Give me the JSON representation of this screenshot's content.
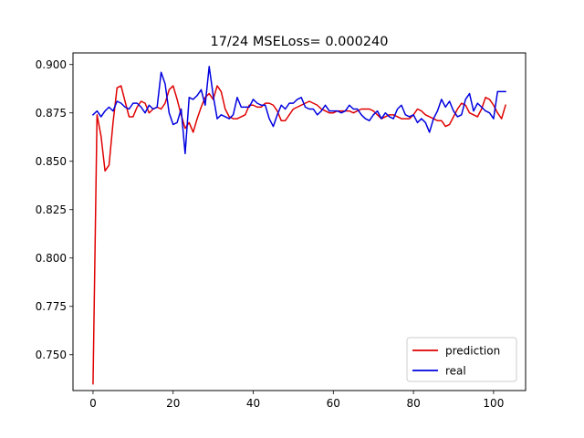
{
  "chart_data": {
    "type": "line",
    "title": "17/24 MSELoss= 0.000240",
    "xlabel": "",
    "ylabel": "",
    "xlim": [
      -5,
      108
    ],
    "ylim": [
      0.7315,
      0.906
    ],
    "xticks": [
      0,
      20,
      40,
      60,
      80,
      100
    ],
    "xtick_labels": [
      "0",
      "20",
      "40",
      "60",
      "80",
      "100"
    ],
    "yticks": [
      0.75,
      0.775,
      0.8,
      0.825,
      0.85,
      0.875,
      0.9
    ],
    "ytick_labels": [
      "0.750",
      "0.775",
      "0.800",
      "0.825",
      "0.850",
      "0.875",
      "0.900"
    ],
    "grid": false,
    "legend_position": "lower-right",
    "series": [
      {
        "name": "prediction",
        "color": "#e00000",
        "x": [
          0,
          1,
          2,
          3,
          4,
          5,
          6,
          7,
          8,
          9,
          10,
          11,
          12,
          13,
          14,
          15,
          16,
          17,
          18,
          19,
          20,
          21,
          22,
          23,
          24,
          25,
          26,
          27,
          28,
          29,
          30,
          31,
          32,
          33,
          34,
          35,
          36,
          37,
          38,
          39,
          40,
          41,
          42,
          43,
          44,
          45,
          46,
          47,
          48,
          49,
          50,
          51,
          52,
          53,
          54,
          55,
          56,
          57,
          58,
          59,
          60,
          61,
          62,
          63,
          64,
          65,
          66,
          67,
          68,
          69,
          70,
          71,
          72,
          73,
          74,
          75,
          76,
          77,
          78,
          79,
          80,
          81,
          82,
          83,
          84,
          85,
          86,
          87,
          88,
          89,
          90,
          91,
          92,
          93,
          94,
          95,
          96,
          97,
          98,
          99,
          100,
          101,
          102,
          103
        ],
        "values": [
          0.735,
          0.874,
          0.863,
          0.845,
          0.848,
          0.87,
          0.888,
          0.889,
          0.881,
          0.873,
          0.873,
          0.878,
          0.881,
          0.88,
          0.875,
          0.877,
          0.878,
          0.877,
          0.88,
          0.887,
          0.889,
          0.882,
          0.874,
          0.867,
          0.87,
          0.865,
          0.872,
          0.878,
          0.883,
          0.885,
          0.882,
          0.889,
          0.886,
          0.877,
          0.873,
          0.872,
          0.872,
          0.873,
          0.874,
          0.879,
          0.879,
          0.878,
          0.878,
          0.88,
          0.88,
          0.879,
          0.876,
          0.871,
          0.871,
          0.874,
          0.877,
          0.878,
          0.879,
          0.88,
          0.881,
          0.88,
          0.879,
          0.877,
          0.876,
          0.875,
          0.875,
          0.876,
          0.876,
          0.876,
          0.876,
          0.875,
          0.876,
          0.877,
          0.877,
          0.877,
          0.876,
          0.874,
          0.872,
          0.873,
          0.874,
          0.874,
          0.873,
          0.872,
          0.872,
          0.872,
          0.874,
          0.877,
          0.876,
          0.874,
          0.873,
          0.872,
          0.871,
          0.871,
          0.868,
          0.869,
          0.873,
          0.877,
          0.88,
          0.879,
          0.875,
          0.874,
          0.873,
          0.877,
          0.883,
          0.882,
          0.879,
          0.875,
          0.872,
          0.879
        ]
      },
      {
        "name": "real",
        "color": "#0000e0",
        "x": [
          0,
          1,
          2,
          3,
          4,
          5,
          6,
          7,
          8,
          9,
          10,
          11,
          12,
          13,
          14,
          15,
          16,
          17,
          18,
          19,
          20,
          21,
          22,
          23,
          24,
          25,
          26,
          27,
          28,
          29,
          30,
          31,
          32,
          33,
          34,
          35,
          36,
          37,
          38,
          39,
          40,
          41,
          42,
          43,
          44,
          45,
          46,
          47,
          48,
          49,
          50,
          51,
          52,
          53,
          54,
          55,
          56,
          57,
          58,
          59,
          60,
          61,
          62,
          63,
          64,
          65,
          66,
          67,
          68,
          69,
          70,
          71,
          72,
          73,
          74,
          75,
          76,
          77,
          78,
          79,
          80,
          81,
          82,
          83,
          84,
          85,
          86,
          87,
          88,
          89,
          90,
          91,
          92,
          93,
          94,
          95,
          96,
          97,
          98,
          99,
          100,
          101,
          102,
          103
        ],
        "values": [
          0.874,
          0.876,
          0.873,
          0.876,
          0.878,
          0.876,
          0.881,
          0.88,
          0.878,
          0.877,
          0.88,
          0.88,
          0.878,
          0.875,
          0.879,
          0.877,
          0.878,
          0.896,
          0.89,
          0.875,
          0.869,
          0.87,
          0.877,
          0.854,
          0.883,
          0.882,
          0.884,
          0.887,
          0.879,
          0.899,
          0.884,
          0.872,
          0.874,
          0.873,
          0.872,
          0.874,
          0.883,
          0.878,
          0.878,
          0.878,
          0.882,
          0.88,
          0.879,
          0.879,
          0.872,
          0.868,
          0.874,
          0.879,
          0.877,
          0.88,
          0.88,
          0.882,
          0.883,
          0.878,
          0.877,
          0.877,
          0.874,
          0.876,
          0.879,
          0.876,
          0.876,
          0.876,
          0.875,
          0.876,
          0.879,
          0.877,
          0.877,
          0.874,
          0.872,
          0.871,
          0.874,
          0.876,
          0.872,
          0.875,
          0.873,
          0.872,
          0.877,
          0.879,
          0.874,
          0.873,
          0.874,
          0.87,
          0.872,
          0.87,
          0.865,
          0.872,
          0.876,
          0.882,
          0.878,
          0.881,
          0.876,
          0.873,
          0.874,
          0.882,
          0.885,
          0.876,
          0.88,
          0.878,
          0.876,
          0.875,
          0.872,
          0.886,
          0.886,
          0.886
        ]
      }
    ]
  }
}
